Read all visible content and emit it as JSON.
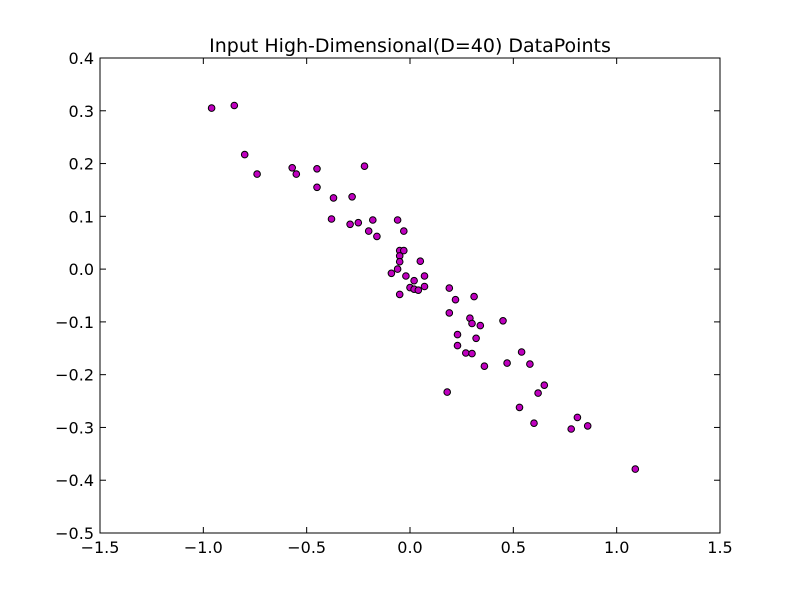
{
  "chart_data": {
    "type": "scatter",
    "title": "Input High-Dimensional(D=40) DataPoints",
    "xlabel": "",
    "ylabel": "",
    "xlim": [
      -1.5,
      1.5
    ],
    "ylim": [
      -0.5,
      0.4
    ],
    "xticks": [
      -1.5,
      -1.0,
      -0.5,
      0.0,
      0.5,
      1.0,
      1.5
    ],
    "xtick_labels": [
      "−1.5",
      "−1.0",
      "−0.5",
      "0.0",
      "0.5",
      "1.0",
      "1.5"
    ],
    "yticks": [
      -0.5,
      -0.4,
      -0.3,
      -0.2,
      -0.1,
      0.0,
      0.1,
      0.2,
      0.3,
      0.4
    ],
    "ytick_labels": [
      "−0.5",
      "−0.4",
      "−0.3",
      "−0.2",
      "−0.1",
      "0.0",
      "0.1",
      "0.2",
      "0.3",
      "0.4"
    ],
    "grid": false,
    "legend": "none",
    "marker_color": "#bf00bf",
    "marker_edge_color": "#000000",
    "points": [
      [
        -0.96,
        0.305
      ],
      [
        -0.85,
        0.31
      ],
      [
        -0.8,
        0.217
      ],
      [
        -0.74,
        0.18
      ],
      [
        -0.57,
        0.192
      ],
      [
        -0.55,
        0.18
      ],
      [
        -0.45,
        0.19
      ],
      [
        -0.45,
        0.155
      ],
      [
        -0.37,
        0.135
      ],
      [
        -0.38,
        0.095
      ],
      [
        -0.28,
        0.137
      ],
      [
        -0.22,
        0.195
      ],
      [
        -0.29,
        0.085
      ],
      [
        -0.25,
        0.088
      ],
      [
        -0.18,
        0.093
      ],
      [
        -0.2,
        0.072
      ],
      [
        -0.16,
        0.062
      ],
      [
        -0.06,
        0.093
      ],
      [
        -0.03,
        0.072
      ],
      [
        -0.05,
        0.035
      ],
      [
        -0.03,
        0.035
      ],
      [
        -0.05,
        0.025
      ],
      [
        -0.05,
        0.014
      ],
      [
        0.05,
        0.015
      ],
      [
        -0.09,
        -0.008
      ],
      [
        -0.06,
        0.0
      ],
      [
        -0.02,
        -0.013
      ],
      [
        0.02,
        -0.022
      ],
      [
        0.07,
        -0.013
      ],
      [
        0.0,
        -0.035
      ],
      [
        0.02,
        -0.038
      ],
      [
        0.04,
        -0.04
      ],
      [
        0.07,
        -0.033
      ],
      [
        -0.05,
        -0.048
      ],
      [
        0.19,
        -0.036
      ],
      [
        0.22,
        -0.058
      ],
      [
        0.31,
        -0.052
      ],
      [
        0.19,
        -0.083
      ],
      [
        0.29,
        -0.093
      ],
      [
        0.3,
        -0.103
      ],
      [
        0.34,
        -0.107
      ],
      [
        0.23,
        -0.124
      ],
      [
        0.32,
        -0.131
      ],
      [
        0.23,
        -0.145
      ],
      [
        0.27,
        -0.159
      ],
      [
        0.3,
        -0.16
      ],
      [
        0.45,
        -0.098
      ],
      [
        0.54,
        -0.157
      ],
      [
        0.47,
        -0.178
      ],
      [
        0.58,
        -0.18
      ],
      [
        0.36,
        -0.184
      ],
      [
        0.18,
        -0.233
      ],
      [
        0.65,
        -0.22
      ],
      [
        0.62,
        -0.235
      ],
      [
        0.53,
        -0.262
      ],
      [
        0.6,
        -0.292
      ],
      [
        0.81,
        -0.281
      ],
      [
        0.78,
        -0.303
      ],
      [
        0.86,
        -0.297
      ],
      [
        1.09,
        -0.379
      ]
    ]
  }
}
